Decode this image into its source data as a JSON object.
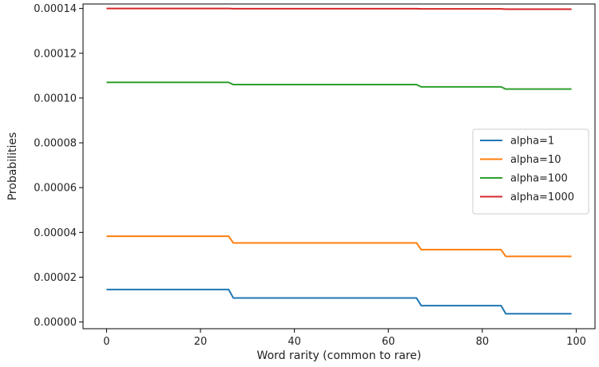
{
  "chart_data": {
    "type": "line",
    "title": "",
    "xlabel": "Word rarity (common to rare)",
    "ylabel": "Probabilities",
    "xlim": [
      -5,
      104
    ],
    "ylim": [
      -3e-06,
      0.000142
    ],
    "xticks": [
      0,
      20,
      40,
      60,
      80,
      100
    ],
    "xtick_labels": [
      "0",
      "20",
      "40",
      "60",
      "80",
      "100"
    ],
    "yticks": [
      0,
      2e-05,
      4e-05,
      6e-05,
      8e-05,
      0.0001,
      0.00012,
      0.00014
    ],
    "ytick_labels": [
      "0.00000",
      "0.00002",
      "0.00004",
      "0.00006",
      "0.00008",
      "0.00010",
      "0.00012",
      "0.00014"
    ],
    "grid": false,
    "legend_position": "center-right",
    "series": [
      {
        "name": "alpha=1",
        "color": "#1f77b4",
        "points": [
          [
            0,
            1.45e-05
          ],
          [
            26,
            1.45e-05
          ],
          [
            27,
            1.07e-05
          ],
          [
            66,
            1.07e-05
          ],
          [
            67,
            7.3e-06
          ],
          [
            84,
            7.3e-06
          ],
          [
            85,
            3.7e-06
          ],
          [
            99,
            3.7e-06
          ]
        ]
      },
      {
        "name": "alpha=10",
        "color": "#ff7f0e",
        "points": [
          [
            0,
            3.83e-05
          ],
          [
            26,
            3.83e-05
          ],
          [
            27,
            3.53e-05
          ],
          [
            66,
            3.53e-05
          ],
          [
            67,
            3.23e-05
          ],
          [
            84,
            3.23e-05
          ],
          [
            85,
            2.93e-05
          ],
          [
            99,
            2.93e-05
          ]
        ]
      },
      {
        "name": "alpha=100",
        "color": "#2ca02c",
        "points": [
          [
            0,
            0.000107
          ],
          [
            26,
            0.000107
          ],
          [
            27,
            0.000106
          ],
          [
            66,
            0.000106
          ],
          [
            67,
            0.000105
          ],
          [
            84,
            0.000105
          ],
          [
            85,
            0.000104
          ],
          [
            99,
            0.000104
          ]
        ]
      },
      {
        "name": "alpha=1000",
        "color": "#d62728",
        "points": [
          [
            0,
            0.00014
          ],
          [
            26,
            0.00014
          ],
          [
            27,
            0.0001399
          ],
          [
            66,
            0.0001399
          ],
          [
            67,
            0.0001398
          ],
          [
            84,
            0.0001398
          ],
          [
            85,
            0.0001397
          ],
          [
            99,
            0.0001397
          ]
        ]
      }
    ]
  }
}
